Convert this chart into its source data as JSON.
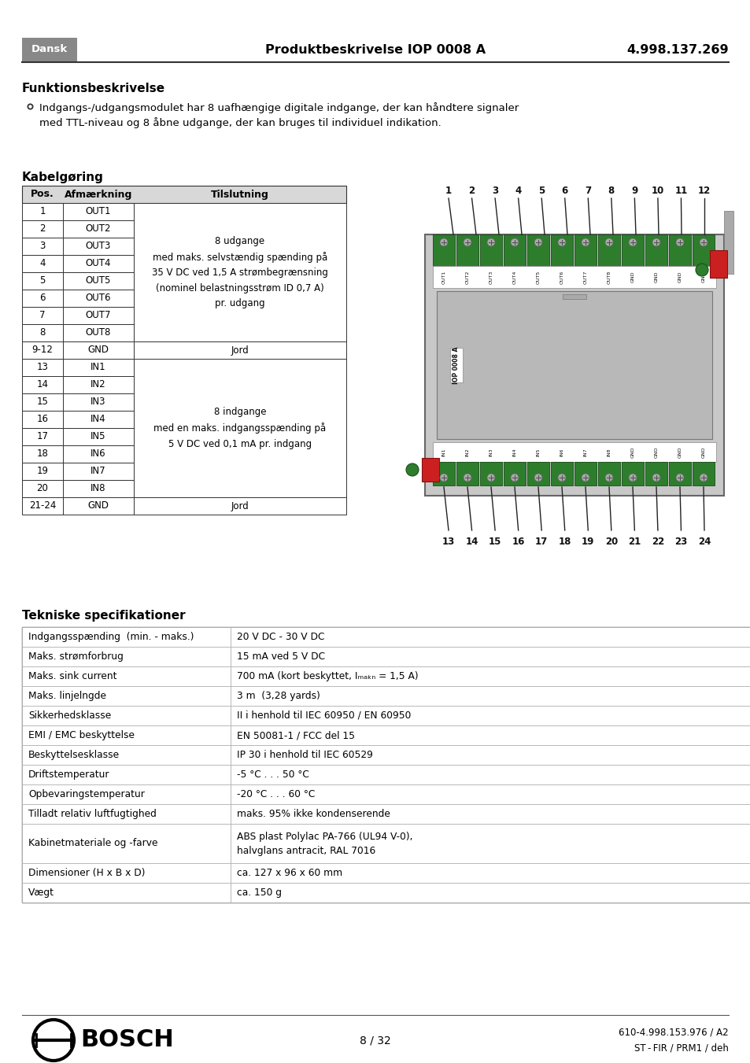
{
  "header_lang": "Dansk",
  "header_lang_bg": "#888888",
  "header_lang_fg": "#ffffff",
  "header_title": "Produktbeskrivelse IOP 0008 A",
  "header_number": "4.998.137.269",
  "section1_title": "Funktionsbeskrivelse",
  "section1_bullet": "Indgangs-/udgangsmodulet har 8 uafhængige digitale indgange, der kan håndtere signaler\nmed TTL-niveau og 8 åbne udgange, der kan bruges til individuel indikation.",
  "kabel_title": "Kabelgøring",
  "table_headers": [
    "Pos.",
    "Afmærkning",
    "Tilslutning"
  ],
  "table_rows": [
    [
      "1",
      "OUT1"
    ],
    [
      "2",
      "OUT2"
    ],
    [
      "3",
      "OUT3"
    ],
    [
      "4",
      "OUT4"
    ],
    [
      "5",
      "OUT5"
    ],
    [
      "6",
      "OUT6"
    ],
    [
      "7",
      "OUT7"
    ],
    [
      "8",
      "OUT8"
    ],
    [
      "9-12",
      "GND",
      "Jord"
    ],
    [
      "13",
      "IN1"
    ],
    [
      "14",
      "IN2"
    ],
    [
      "15",
      "IN3"
    ],
    [
      "16",
      "IN4"
    ],
    [
      "17",
      "IN5"
    ],
    [
      "18",
      "IN6"
    ],
    [
      "19",
      "IN7"
    ],
    [
      "20",
      "IN8"
    ],
    [
      "21-24",
      "GND",
      "Jord"
    ]
  ],
  "merged_out_text": "8 udgange\nmed maks. selvstændig spænding på\n35 V DC ved 1,5 A strømbegrænsning\n(nominel belastningsstrøm ID 0,7 A)\npr. udgang",
  "merged_in_text": "8 indgange\nmed en maks. indgangsspænding på\n5 V DC ved 0,1 mA pr. indgang",
  "tech_title": "Tekniske specifikationer",
  "tech_rows": [
    [
      "Indgangsspænding  (min. - maks.)",
      "20 V DC - 30 V DC"
    ],
    [
      "Maks. strømforbrug",
      "15 mA ved 5 V DC"
    ],
    [
      "Maks. sink current",
      "700 mA (kort beskyttet, Iₘₐₖₙ = 1,5 A)"
    ],
    [
      "Maks. linjelngde",
      "3 m  (3,28 yards)"
    ],
    [
      "Sikkerhedsklasse",
      "II i henhold til IEC 60950 / EN 60950"
    ],
    [
      "EMI / EMC beskyttelse",
      "EN 50081-1 / FCC del 15"
    ],
    [
      "Beskyttelsesklasse",
      "IP 30 i henhold til IEC 60529"
    ],
    [
      "Driftstemperatur",
      "-5 °C . . . 50 °C"
    ],
    [
      "Opbevaringstemperatur",
      "-20 °C . . . 60 °C"
    ],
    [
      "Tilladt relativ luftfugtighed",
      "maks. 95% ikke kondenserende"
    ],
    [
      "Kabinetmateriale og -farve",
      "ABS plast Polylac PA-766 (UL94 V-0),\nhalvglans antracit, RAL 7016"
    ],
    [
      "Dimensioner (H x B x D)",
      "ca. 127 x 96 x 60 mm"
    ],
    [
      "Vægt",
      "ca. 150 g"
    ]
  ],
  "footer_page": "8 / 32",
  "footer_code": "610-4.998.153.976 / A2",
  "footer_sub": "ST - FIR / PRM1 / deh",
  "bg_color": "#ffffff",
  "text_color": "#000000",
  "green_color": "#2d7d2d",
  "green_dark": "#1a4d1a",
  "device_gray": "#c8c8c8",
  "device_border": "#888888",
  "red_color": "#cc2020"
}
